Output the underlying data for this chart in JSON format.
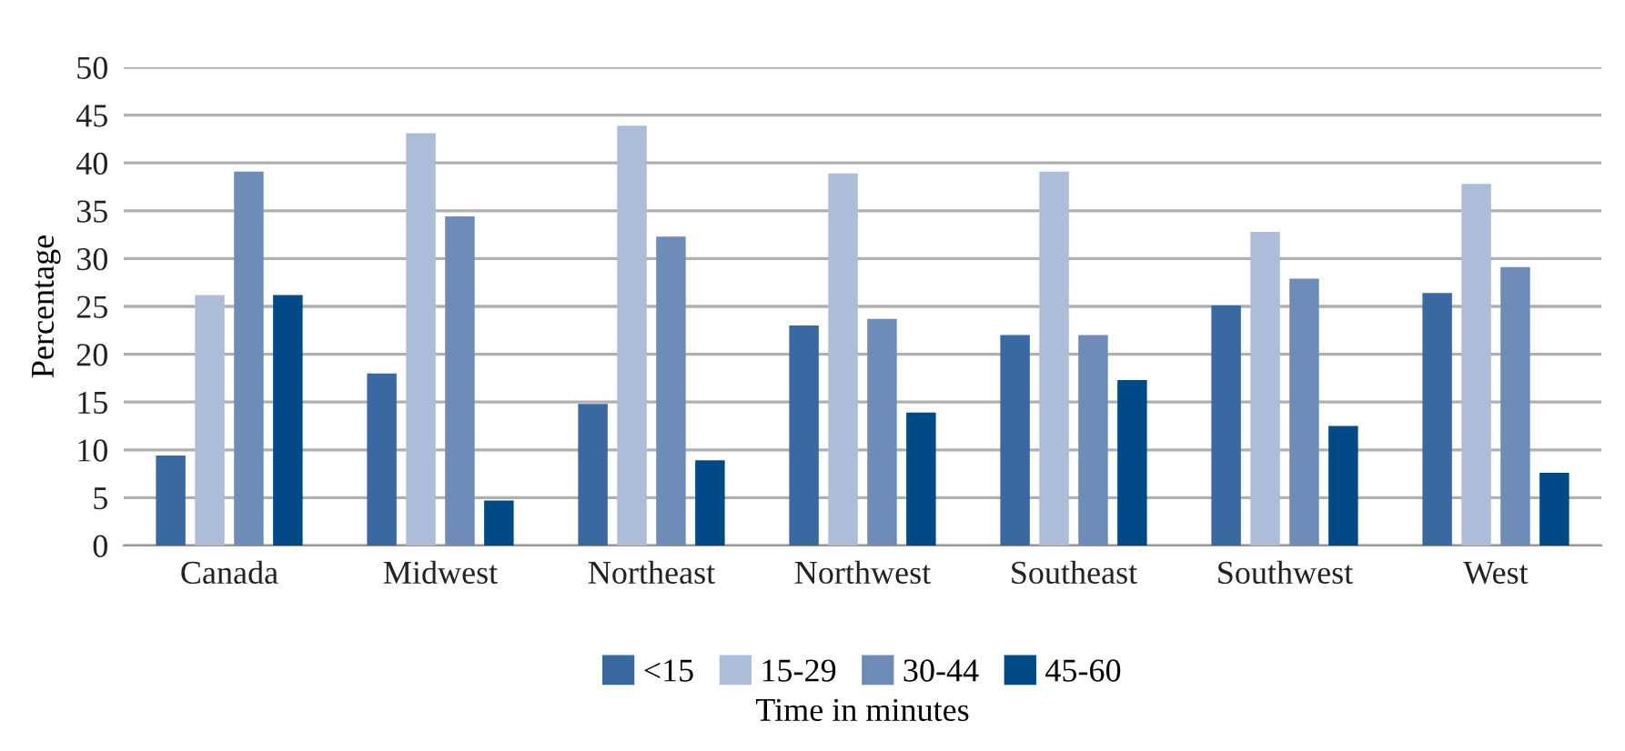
{
  "chart_data": {
    "type": "bar",
    "xlabel": "Time in minutes",
    "ylabel": "Percentage",
    "categories": [
      "Canada",
      "Midwest",
      "Northeast",
      "Northwest",
      "Southeast",
      "Southwest",
      "West"
    ],
    "series": [
      {
        "name": "<15",
        "color": "#3a68a0",
        "values": [
          9.4,
          18.0,
          14.8,
          23.0,
          22.0,
          25.1,
          26.4
        ]
      },
      {
        "name": "15-29",
        "color": "#adbcd9",
        "values": [
          26.2,
          43.1,
          43.9,
          38.9,
          39.1,
          32.8,
          37.8
        ]
      },
      {
        "name": "30-44",
        "color": "#6e8cb8",
        "values": [
          39.1,
          34.4,
          32.3,
          23.7,
          22.0,
          27.9,
          29.1
        ]
      },
      {
        "name": "45-60",
        "color": "#004a87",
        "values": [
          26.2,
          4.7,
          8.9,
          13.9,
          17.3,
          12.5,
          7.6
        ]
      }
    ],
    "ylim": [
      0,
      50
    ],
    "yticks": [
      0,
      5,
      10,
      15,
      20,
      25,
      30,
      35,
      40,
      45,
      50
    ],
    "grid": "y",
    "legend": "bottom"
  }
}
